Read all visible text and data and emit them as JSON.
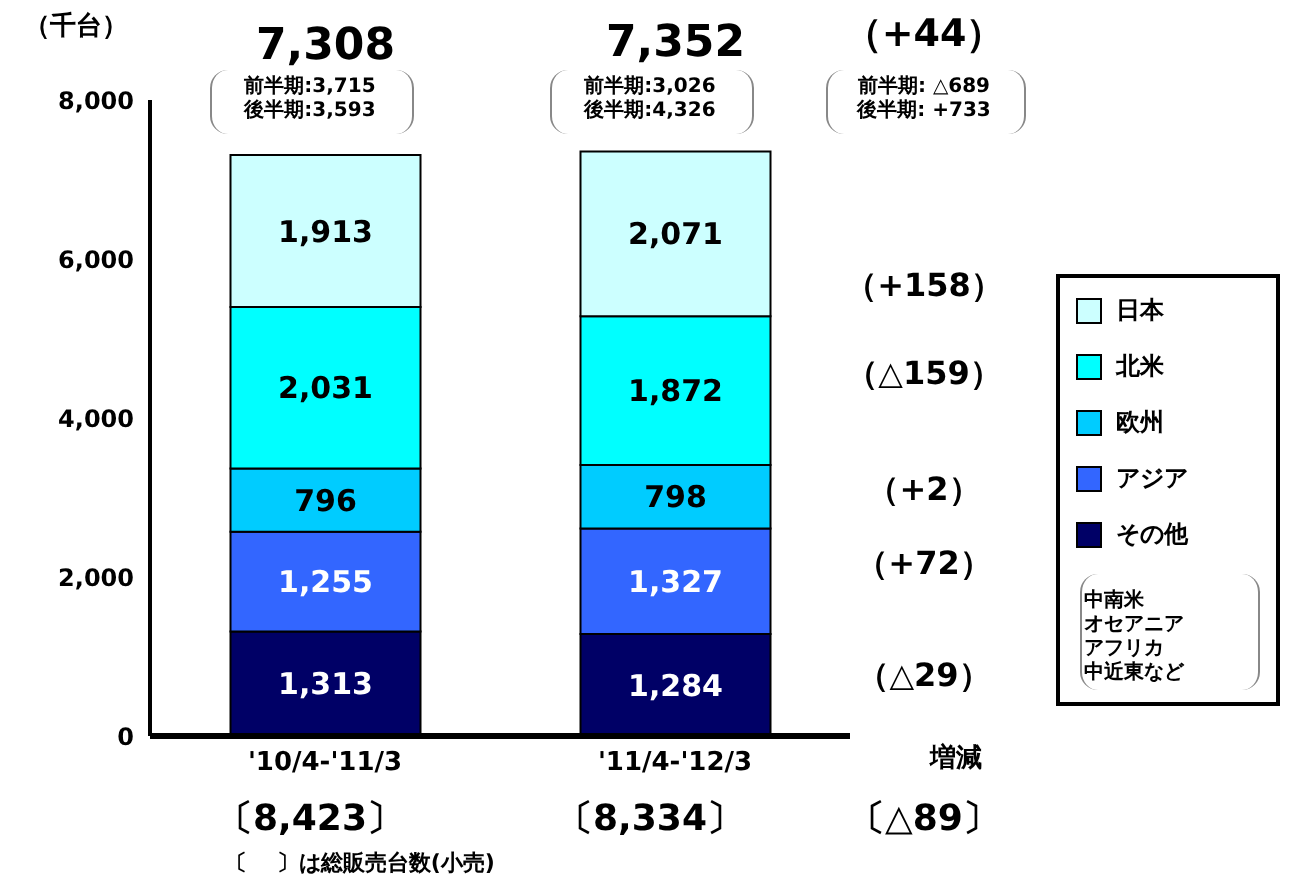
{
  "chart_data": {
    "type": "bar",
    "stacked": true,
    "ylabel": "（千台）",
    "categories": [
      "'10/4-'11/3",
      "'11/4-'12/3"
    ],
    "series": [
      {
        "name": "その他",
        "color": "#000066",
        "values": [
          1313,
          1284
        ],
        "value_labels": [
          "1,313",
          "1,284"
        ]
      },
      {
        "name": "アジア",
        "color": "#3366ff",
        "values": [
          1255,
          1327
        ],
        "value_labels": [
          "1,255",
          "1,327"
        ]
      },
      {
        "name": "欧州",
        "color": "#00ccff",
        "values": [
          796,
          798
        ],
        "value_labels": [
          "796",
          "798"
        ]
      },
      {
        "name": "北米",
        "color": "#00ffff",
        "values": [
          2031,
          1872
        ],
        "value_labels": [
          "2,031",
          "1,872"
        ]
      },
      {
        "name": "日本",
        "color": "#ccffff",
        "values": [
          1913,
          2071
        ],
        "value_labels": [
          "1,913",
          "2,071"
        ]
      }
    ],
    "ylim": [
      0,
      8000
    ],
    "yticks": [
      0,
      {
        "value": 2000,
        "label": "2,000"
      },
      {
        "value": 4000,
        "label": "4,000"
      },
      {
        "value": 6000,
        "label": "6,000"
      },
      {
        "value": 8000,
        "label": "8,000"
      }
    ],
    "totals": [
      "7,308",
      "7,352"
    ],
    "legend": "right",
    "grid": false,
    "annotations": [
      "前半期:3,715",
      "後半期:3,593",
      "前半期:3,026",
      "後半期:4,326",
      "（+44）",
      "前半期: △689",
      "後半期: +733",
      "（+158）",
      "（△159）",
      "（+2）",
      "（+72）",
      "（△29）",
      "増減",
      "〔8,423〕",
      "〔8,334〕",
      "〔△89〕",
      "〔　 〕は総販売台数(小売)",
      "中南米",
      "オセアニア",
      "アフリカ",
      "中近東など"
    ]
  }
}
